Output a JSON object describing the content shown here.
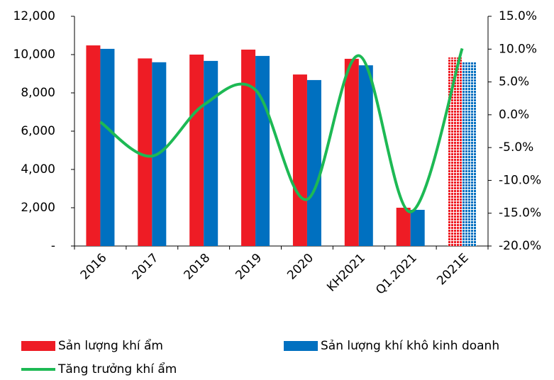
{
  "chart_data": {
    "type": "bar-line",
    "categories": [
      "2016",
      "2017",
      "2018",
      "2019",
      "2020",
      "KH2021",
      "Q1.2021",
      "2021E"
    ],
    "dotted": [
      false,
      false,
      false,
      false,
      false,
      false,
      false,
      true
    ],
    "series": [
      {
        "name": "Sản lượng khí ẩm",
        "type": "bar",
        "color": "#ee1c25",
        "values": [
          10480,
          9800,
          10000,
          10260,
          8960,
          9780,
          2000,
          9850
        ]
      },
      {
        "name": "Sản lượng khí khô kinh doanh",
        "type": "bar",
        "color": "#0070c0",
        "values": [
          10300,
          9600,
          9670,
          9930,
          8670,
          9440,
          1890,
          9600
        ]
      },
      {
        "name": "Tăng trưởng khí ẩm",
        "type": "line",
        "axis": "y2",
        "color": "#1db954",
        "values": [
          -1.1,
          -6.3,
          1.5,
          3.8,
          -12.9,
          9.0,
          -14.8,
          10.1
        ]
      }
    ],
    "ylim": [
      0,
      12000
    ],
    "yticks": [
      {
        "value": 0,
        "label": "-"
      },
      {
        "value": 2000,
        "label": "2,000"
      },
      {
        "value": 4000,
        "label": "4,000"
      },
      {
        "value": 6000,
        "label": "6,000"
      },
      {
        "value": 8000,
        "label": "8,000"
      },
      {
        "value": 10000,
        "label": "10,000"
      },
      {
        "value": 12000,
        "label": "12,000"
      }
    ],
    "y2lim": [
      -20,
      15
    ],
    "y2ticks": [
      {
        "value": -20,
        "label": "-20.0%"
      },
      {
        "value": -15,
        "label": "-15.0%"
      },
      {
        "value": -10,
        "label": "-10.0%"
      },
      {
        "value": -5,
        "label": "-5.0%"
      },
      {
        "value": 0,
        "label": "0.0%"
      },
      {
        "value": 5,
        "label": "5.0%"
      },
      {
        "value": 10,
        "label": "10.0%"
      },
      {
        "value": 15,
        "label": "15.0%"
      }
    ],
    "legend": "bottom"
  }
}
